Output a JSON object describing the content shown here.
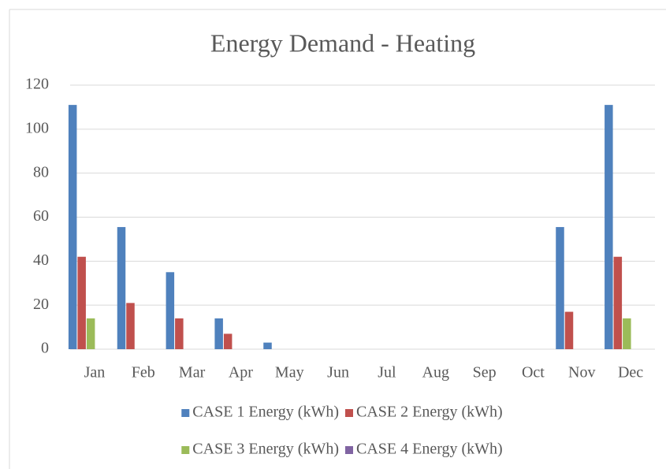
{
  "chart_data": {
    "type": "bar",
    "title": "Energy Demand - Heating",
    "categories": [
      "Jan",
      "Feb",
      "Mar",
      "Apr",
      "May",
      "Jun",
      "Jul",
      "Aug",
      "Sep",
      "Oct",
      "Nov",
      "Dec"
    ],
    "series": [
      {
        "name": "CASE 1 Energy (kWh)",
        "color": "#4f81bd",
        "values": [
          111,
          55.5,
          35,
          14,
          3,
          0,
          0,
          0,
          0,
          0,
          55.5,
          111
        ]
      },
      {
        "name": "CASE 2 Energy (kWh)",
        "color": "#c0504d",
        "values": [
          42,
          21,
          14,
          7,
          0,
          0,
          0,
          0,
          0,
          0,
          17,
          42
        ]
      },
      {
        "name": "CASE 3 Energy (kWh)",
        "color": "#9bbb59",
        "values": [
          14,
          0,
          0,
          0,
          0,
          0,
          0,
          0,
          0,
          0,
          0,
          14
        ]
      },
      {
        "name": "CASE 4 Energy (kWh)",
        "color": "#8064a2",
        "values": [
          0,
          0,
          0,
          0,
          0,
          0,
          0,
          0,
          0,
          0,
          0,
          0
        ]
      }
    ],
    "ylim": [
      0,
      120
    ],
    "yticks": [
      0,
      20,
      40,
      60,
      80,
      100,
      120
    ],
    "grid": true,
    "legend": "bottom"
  }
}
